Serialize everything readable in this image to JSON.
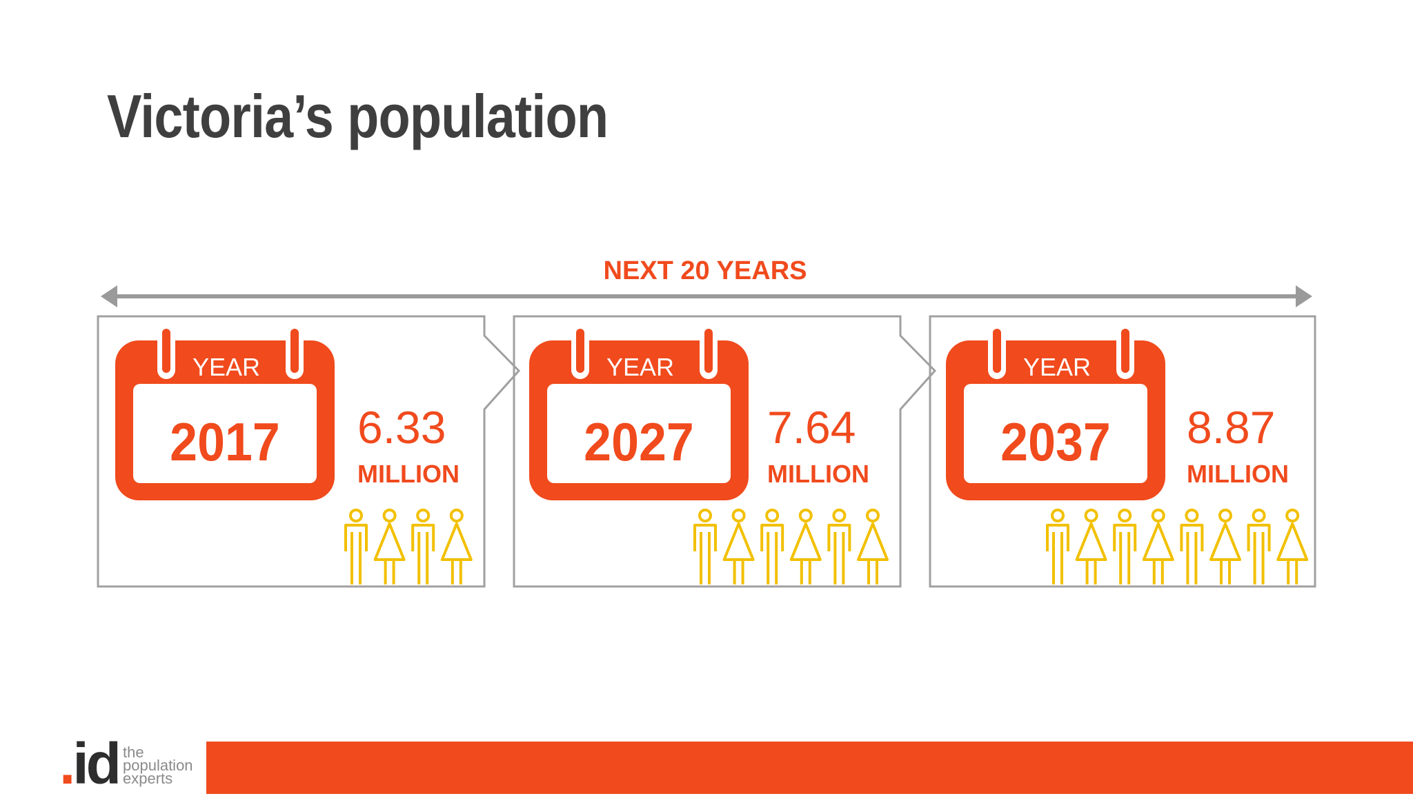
{
  "title": "Victoria’s population",
  "timeline": {
    "label": "NEXT 20 YEARS",
    "panels": [
      {
        "calendar_header": "YEAR",
        "year": "2017",
        "value": "6.33",
        "unit": "MILLION",
        "people_icons": 4
      },
      {
        "calendar_header": "YEAR",
        "year": "2027",
        "value": "7.64",
        "unit": "MILLION",
        "people_icons": 6
      },
      {
        "calendar_header": "YEAR",
        "year": "2037",
        "value": "8.87",
        "unit": "MILLION",
        "people_icons": 8
      }
    ]
  },
  "logo": {
    "mark_dot": ".",
    "mark_text": "id",
    "tagline": [
      "the",
      "population",
      "experts"
    ]
  },
  "colors": {
    "accent": "#f04a1d",
    "figure": "#f2c000",
    "title": "#3f3f3f",
    "frame": "#9a9a9a"
  },
  "icons": {
    "calendar": "calendar-icon",
    "person_male": "person-male-icon",
    "person_female": "person-female-icon",
    "arrow": "double-arrow-icon"
  }
}
